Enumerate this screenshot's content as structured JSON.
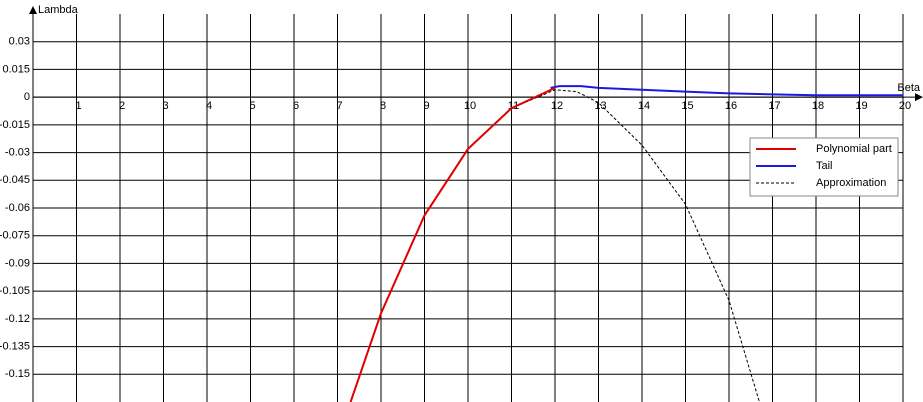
{
  "chart_data": {
    "type": "line",
    "x_label": "Beta",
    "y_label": "Lambda",
    "xlim": [
      0,
      20
    ],
    "ylim": [
      -0.165,
      0.045
    ],
    "xticks": [
      1,
      2,
      3,
      4,
      5,
      6,
      7,
      8,
      9,
      10,
      11,
      12,
      13,
      14,
      15,
      16,
      17,
      18,
      19,
      20
    ],
    "yticks": [
      0.03,
      0.015,
      0,
      -0.015,
      -0.03,
      -0.045,
      -0.06,
      -0.075,
      -0.09,
      -0.105,
      -0.12,
      -0.135,
      -0.15
    ],
    "grid": true,
    "legend": "right",
    "series": [
      {
        "name": "Polynomial part",
        "color": "#e00000",
        "style": "solid",
        "x": [
          7.3,
          8,
          9,
          10,
          11,
          12
        ],
        "values": [
          -0.165,
          -0.117,
          -0.064,
          -0.028,
          -0.006,
          0.005
        ]
      },
      {
        "name": "Tail",
        "color": "#1a1ae0",
        "style": "solid",
        "x": [
          11.9,
          12.1,
          12.6,
          13,
          14,
          15,
          16,
          17,
          18,
          19,
          20
        ],
        "values": [
          0.005,
          0.006,
          0.006,
          0.005,
          0.004,
          0.003,
          0.002,
          0.0015,
          0.001,
          0.001,
          0.001
        ]
      },
      {
        "name": "Approximation",
        "color": "#000000",
        "style": "dashed",
        "x": [
          7.3,
          8,
          9,
          10,
          11,
          12,
          12.5,
          13,
          14,
          15,
          16,
          16.7
        ],
        "values": [
          -0.165,
          -0.117,
          -0.064,
          -0.028,
          -0.006,
          0.004,
          0.003,
          -0.003,
          -0.026,
          -0.058,
          -0.11,
          -0.165
        ]
      }
    ]
  }
}
